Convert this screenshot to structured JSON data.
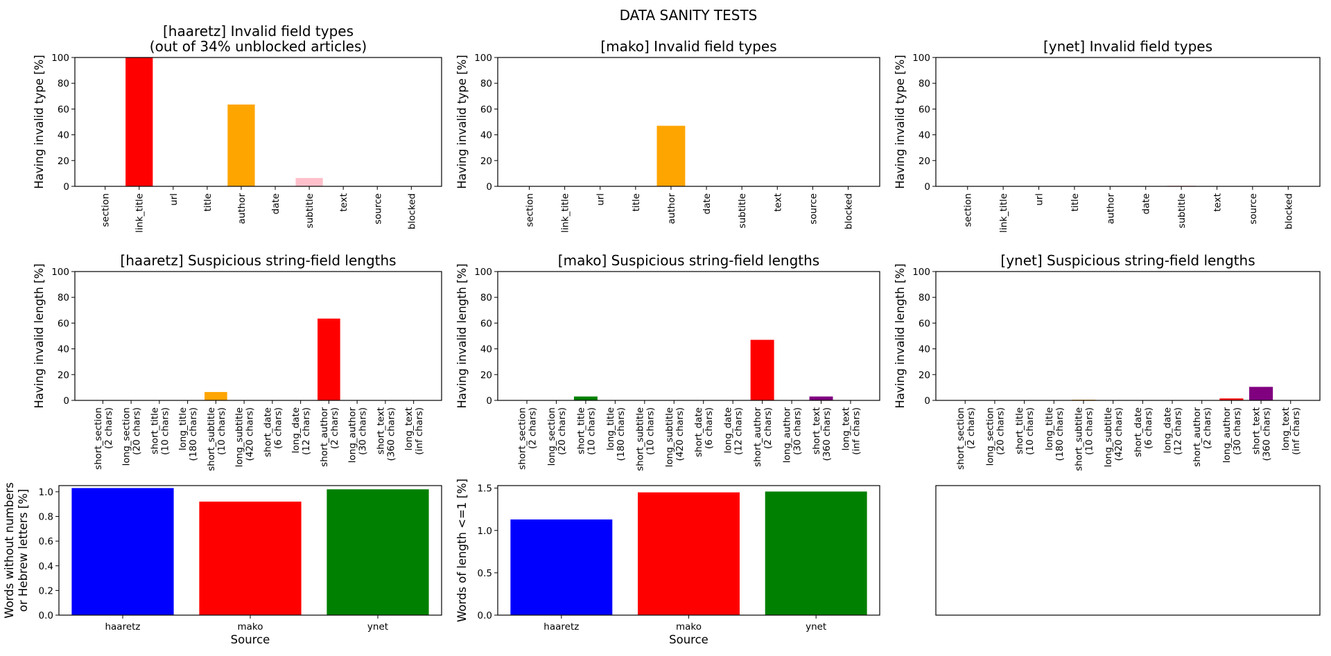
{
  "figure": {
    "suptitle": "DATA SANITY TESTS"
  },
  "chart_data": [
    {
      "id": "haaretz-types",
      "type": "bar",
      "title": "[haaretz] Invalid field types\n(out of 34% unblocked articles)",
      "xlabel": "",
      "ylabel": "Having invalid type [%]",
      "ylim": [
        0,
        100
      ],
      "yticks": [
        "0",
        "20",
        "40",
        "60",
        "80",
        "100"
      ],
      "categories": [
        "section",
        "link_title",
        "url",
        "title",
        "author",
        "date",
        "subtitle",
        "text",
        "source",
        "blocked"
      ],
      "values": [
        0,
        100,
        0,
        0,
        63.5,
        0,
        6.5,
        0,
        0,
        0
      ],
      "colors": [
        "#ff0000",
        "#ff0000",
        "#ff0000",
        "#ff0000",
        "#ffa500",
        "#ffa500",
        "#ffc0cb",
        "#ffc0cb",
        "#ffc0cb",
        "#ffc0cb"
      ]
    },
    {
      "id": "mako-types",
      "type": "bar",
      "title": "[mako] Invalid field types",
      "xlabel": "",
      "ylabel": "Having invalid type [%]",
      "ylim": [
        0,
        100
      ],
      "yticks": [
        "0",
        "20",
        "40",
        "60",
        "80",
        "100"
      ],
      "categories": [
        "section",
        "link_title",
        "url",
        "title",
        "author",
        "date",
        "subtitle",
        "text",
        "source",
        "blocked"
      ],
      "values": [
        0,
        0,
        0,
        0,
        47,
        0,
        0,
        0,
        0,
        0
      ],
      "colors": [
        "#ff0000",
        "#ff0000",
        "#ff0000",
        "#ff0000",
        "#ffa500",
        "#ffa500",
        "#ffc0cb",
        "#ffc0cb",
        "#ffc0cb",
        "#ffc0cb"
      ]
    },
    {
      "id": "ynet-types",
      "type": "bar",
      "title": "[ynet] Invalid field types",
      "xlabel": "",
      "ylabel": "Having invalid type [%]",
      "ylim": [
        0,
        100
      ],
      "yticks": [
        "0",
        "20",
        "40",
        "60",
        "80",
        "100"
      ],
      "categories": [
        "section",
        "link_title",
        "url",
        "title",
        "author",
        "date",
        "subtitle",
        "text",
        "source",
        "blocked"
      ],
      "values": [
        0,
        0,
        0,
        0,
        0,
        0,
        0.5,
        0,
        0,
        0
      ],
      "colors": [
        "#ff0000",
        "#ff0000",
        "#ff0000",
        "#ff0000",
        "#ffa500",
        "#ffa500",
        "#ffc0cb",
        "#ffc0cb",
        "#ffc0cb",
        "#ffc0cb"
      ]
    },
    {
      "id": "haaretz-lengths",
      "type": "bar",
      "title": "[haaretz] Suspicious string-field lengths",
      "xlabel": "",
      "ylabel": "Having invalid length [%]",
      "ylim": [
        0,
        100
      ],
      "yticks": [
        "0",
        "20",
        "40",
        "60",
        "80",
        "100"
      ],
      "categories": [
        "short_section\n(2 chars)",
        "long_section\n(20 chars)",
        "short_title\n(10 chars)",
        "long_title\n(180 chars)",
        "short_subtitle\n(10 chars)",
        "long_subtitle\n(420 chars)",
        "short_date\n(6 chars)",
        "long_date\n(12 chars)",
        "short_author\n(2 chars)",
        "long_author\n(30 chars)",
        "short_text\n(360 chars)",
        "long_text\n(inf chars)"
      ],
      "values": [
        0,
        0,
        0,
        0,
        6.5,
        0,
        0,
        0,
        63.5,
        0,
        0,
        0
      ],
      "colors": [
        "#0000ff",
        "#0000ff",
        "#008000",
        "#008000",
        "#ffa500",
        "#ffa500",
        "#00bfff",
        "#00bfff",
        "#ff0000",
        "#ff0000",
        "#800080",
        "#800080"
      ]
    },
    {
      "id": "mako-lengths",
      "type": "bar",
      "title": "[mako] Suspicious string-field lengths",
      "xlabel": "",
      "ylabel": "Having invalid length [%]",
      "ylim": [
        0,
        100
      ],
      "yticks": [
        "0",
        "20",
        "40",
        "60",
        "80",
        "100"
      ],
      "categories": [
        "short_section\n(2 chars)",
        "long_section\n(20 chars)",
        "short_title\n(10 chars)",
        "long_title\n(180 chars)",
        "short_subtitle\n(10 chars)",
        "long_subtitle\n(420 chars)",
        "short_date\n(6 chars)",
        "long_date\n(12 chars)",
        "short_author\n(2 chars)",
        "long_author\n(30 chars)",
        "short_text\n(360 chars)",
        "long_text\n(inf chars)"
      ],
      "values": [
        0,
        0,
        3,
        0,
        0,
        0,
        0,
        0,
        47,
        0,
        3,
        0
      ],
      "colors": [
        "#0000ff",
        "#0000ff",
        "#008000",
        "#008000",
        "#ffa500",
        "#ffa500",
        "#00bfff",
        "#00bfff",
        "#ff0000",
        "#ff0000",
        "#800080",
        "#800080"
      ]
    },
    {
      "id": "ynet-lengths",
      "type": "bar",
      "title": "[ynet] Suspicious string-field lengths",
      "xlabel": "",
      "ylabel": "Having invalid length [%]",
      "ylim": [
        0,
        100
      ],
      "yticks": [
        "0",
        "20",
        "40",
        "60",
        "80",
        "100"
      ],
      "categories": [
        "short_section\n(2 chars)",
        "long_section\n(20 chars)",
        "short_title\n(10 chars)",
        "long_title\n(180 chars)",
        "short_subtitle\n(10 chars)",
        "long_subtitle\n(420 chars)",
        "short_date\n(6 chars)",
        "long_date\n(12 chars)",
        "short_author\n(2 chars)",
        "long_author\n(30 chars)",
        "short_text\n(360 chars)",
        "long_text\n(inf chars)"
      ],
      "values": [
        0,
        0,
        0,
        0,
        0.5,
        0,
        0,
        0,
        0,
        1.5,
        10.5,
        0
      ],
      "colors": [
        "#0000ff",
        "#0000ff",
        "#008000",
        "#008000",
        "#ffa500",
        "#ffa500",
        "#00bfff",
        "#00bfff",
        "#ff0000",
        "#ff0000",
        "#800080",
        "#800080"
      ]
    },
    {
      "id": "words-nonhebrew",
      "type": "bar",
      "title": "",
      "xlabel": "Source",
      "ylabel": "Words without numbers\nor Hebrew letters [%]",
      "ylim": [
        0,
        1.05
      ],
      "yticks": [
        "0.0",
        "0.2",
        "0.4",
        "0.6",
        "0.8",
        "1.0"
      ],
      "yticks_values": [
        0,
        0.2,
        0.4,
        0.6,
        0.8,
        1.0
      ],
      "categories": [
        "haaretz",
        "mako",
        "ynet"
      ],
      "values": [
        1.03,
        0.92,
        1.02
      ],
      "colors": [
        "#0000ff",
        "#ff0000",
        "#008000"
      ]
    },
    {
      "id": "words-short",
      "type": "bar",
      "title": "",
      "xlabel": "Source",
      "ylabel": "Words of length <=1 [%]",
      "ylim": [
        0,
        1.53
      ],
      "yticks": [
        "0.0",
        "0.5",
        "1.0",
        "1.5"
      ],
      "yticks_values": [
        0,
        0.5,
        1.0,
        1.5
      ],
      "categories": [
        "haaretz",
        "mako",
        "ynet"
      ],
      "values": [
        1.13,
        1.45,
        1.46
      ],
      "colors": [
        "#0000ff",
        "#ff0000",
        "#008000"
      ]
    }
  ]
}
